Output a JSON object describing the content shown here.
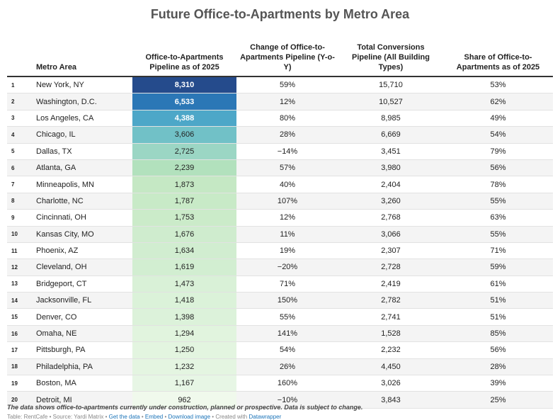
{
  "title": "Future Office-to-Apartments by Metro Area",
  "headers": {
    "rank": "",
    "metro": "Metro Area",
    "pipeline": "Office-to-Apartments Pipeline as of 2025",
    "change": "Change of Office-to-Apartments Pipeline (Y-o-Y)",
    "total": "Total Conversions Pipeline (All Building Types)",
    "share": "Share of Office-to-Apartments as of 2025"
  },
  "rows": [
    {
      "rank": "1",
      "metro": "New York, NY",
      "pipeline": "8,310",
      "change": "59%",
      "total": "15,710",
      "share": "53%",
      "color": "#254b8c"
    },
    {
      "rank": "2",
      "metro": "Washington, D.C.",
      "pipeline": "6,533",
      "change": "12%",
      "total": "10,527",
      "share": "62%",
      "color": "#2b77b6"
    },
    {
      "rank": "3",
      "metro": "Los Angeles, CA",
      "pipeline": "4,388",
      "change": "80%",
      "total": "8,985",
      "share": "49%",
      "color": "#4da7c8"
    },
    {
      "rank": "4",
      "metro": "Chicago, IL",
      "pipeline": "3,606",
      "change": "28%",
      "total": "6,669",
      "share": "54%",
      "color": "#71c1c7"
    },
    {
      "rank": "5",
      "metro": "Dallas, TX",
      "pipeline": "2,725",
      "change": "−14%",
      "total": "3,451",
      "share": "79%",
      "color": "#9bd6c4"
    },
    {
      "rank": "6",
      "metro": "Atlanta, GA",
      "pipeline": "2,239",
      "change": "57%",
      "total": "3,980",
      "share": "56%",
      "color": "#b2e1bd"
    },
    {
      "rank": "7",
      "metro": "Minneapolis, MN",
      "pipeline": "1,873",
      "change": "40%",
      "total": "2,404",
      "share": "78%",
      "color": "#c5e8c4"
    },
    {
      "rank": "8",
      "metro": "Charlotte, NC",
      "pipeline": "1,787",
      "change": "107%",
      "total": "3,260",
      "share": "55%",
      "color": "#c8eac7"
    },
    {
      "rank": "9",
      "metro": "Cincinnati, OH",
      "pipeline": "1,753",
      "change": "12%",
      "total": "2,768",
      "share": "63%",
      "color": "#cbebc9"
    },
    {
      "rank": "10",
      "metro": "Kansas City, MO",
      "pipeline": "1,676",
      "change": "11%",
      "total": "3,066",
      "share": "55%",
      "color": "#cfecce"
    },
    {
      "rank": "11",
      "metro": "Phoenix, AZ",
      "pipeline": "1,634",
      "change": "19%",
      "total": "2,307",
      "share": "71%",
      "color": "#d1edd0"
    },
    {
      "rank": "12",
      "metro": "Cleveland, OH",
      "pipeline": "1,619",
      "change": "−20%",
      "total": "2,728",
      "share": "59%",
      "color": "#d2eed1"
    },
    {
      "rank": "13",
      "metro": "Bridgeport, CT",
      "pipeline": "1,473",
      "change": "71%",
      "total": "2,419",
      "share": "61%",
      "color": "#d9f1d7"
    },
    {
      "rank": "14",
      "metro": "Jacksonville, FL",
      "pipeline": "1,418",
      "change": "150%",
      "total": "2,782",
      "share": "51%",
      "color": "#dbf2d9"
    },
    {
      "rank": "15",
      "metro": "Denver, CO",
      "pipeline": "1,398",
      "change": "55%",
      "total": "2,741",
      "share": "51%",
      "color": "#dcf2da"
    },
    {
      "rank": "16",
      "metro": "Omaha, NE",
      "pipeline": "1,294",
      "change": "141%",
      "total": "1,528",
      "share": "85%",
      "color": "#e1f4de"
    },
    {
      "rank": "17",
      "metro": "Pittsburgh, PA",
      "pipeline": "1,250",
      "change": "54%",
      "total": "2,232",
      "share": "56%",
      "color": "#e3f5e0"
    },
    {
      "rank": "18",
      "metro": "Philadelphia, PA",
      "pipeline": "1,232",
      "change": "26%",
      "total": "4,450",
      "share": "28%",
      "color": "#e4f5e1"
    },
    {
      "rank": "19",
      "metro": "Boston, MA",
      "pipeline": "1,167",
      "change": "160%",
      "total": "3,026",
      "share": "39%",
      "color": "#e7f6e5"
    },
    {
      "rank": "20",
      "metro": "Detroit, MI",
      "pipeline": "962",
      "change": "−10%",
      "total": "3,843",
      "share": "25%",
      "color": "#f0f9ec"
    }
  ],
  "footnote": "The data shows office-to-apartments currently under construction, planned or prospective. Data is subject to change.",
  "credits": {
    "table_source": "Table: RentCafe • Source: Yardi Matrix • ",
    "get_data": "Get the data",
    "sep1": " • ",
    "embed": "Embed",
    "sep2": " • ",
    "download": "Download image",
    "sep3": " • Created with ",
    "datawrapper": "Datawrapper"
  }
}
